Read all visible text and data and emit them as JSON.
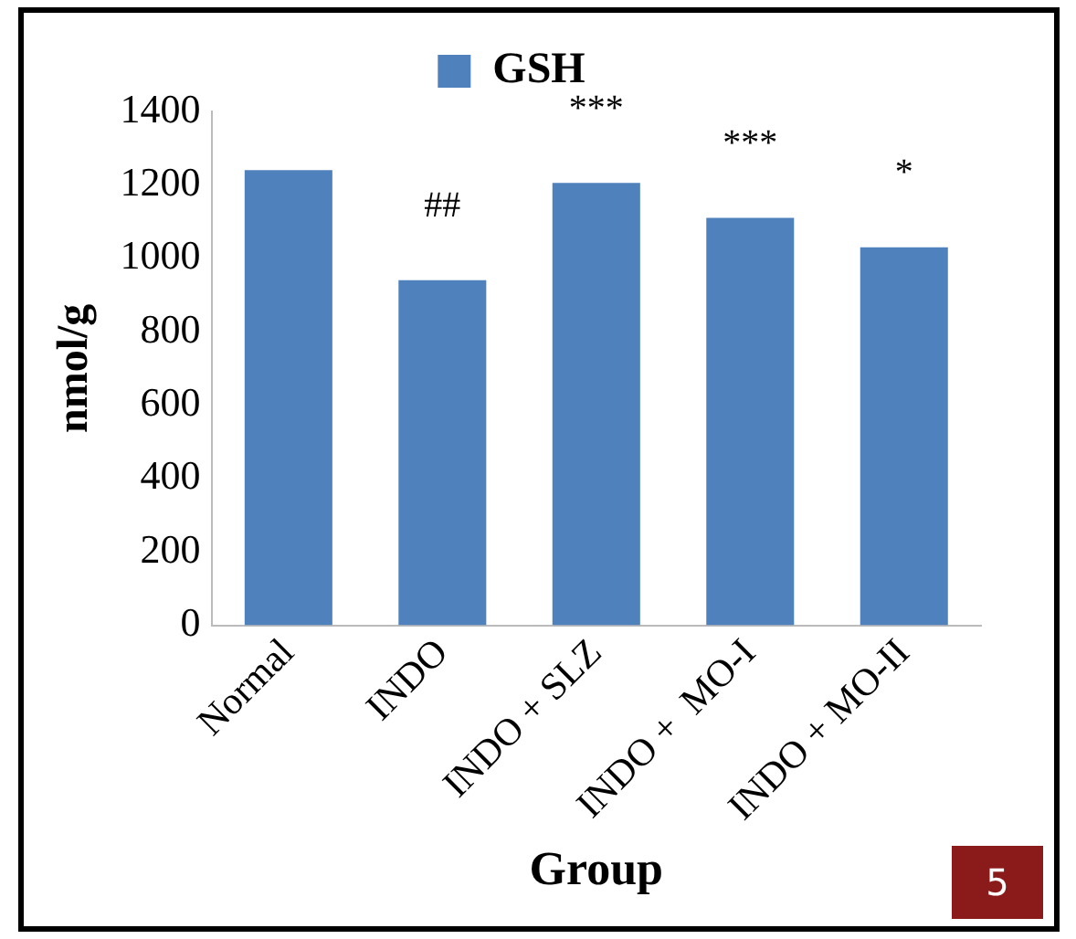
{
  "chart_data": {
    "type": "bar",
    "categories": [
      "Normal",
      "INDO",
      "INDO + SLZ",
      "INDO +  MO-I",
      "INDO + MO-II"
    ],
    "series": [
      {
        "name": "GSH",
        "color": "#4f81bd",
        "values": [
          1240,
          940,
          1205,
          1110,
          1030
        ]
      }
    ],
    "ylabel": "nmol/g",
    "xlabel": "Group",
    "ylim": [
      0,
      1400
    ],
    "yticks": [
      0,
      200,
      400,
      600,
      800,
      1000,
      1200,
      1400
    ],
    "grid": false,
    "legend": "top",
    "annotations": [
      {
        "text": "##",
        "x": "INDO",
        "y": 940
      },
      {
        "text": "***",
        "x": "INDO + SLZ",
        "y": 1205
      },
      {
        "text": "***",
        "x": "INDO +  MO-I",
        "y": 1110
      },
      {
        "text": "*",
        "x": "INDO + MO-II",
        "y": 1030
      },
      "5"
    ]
  }
}
